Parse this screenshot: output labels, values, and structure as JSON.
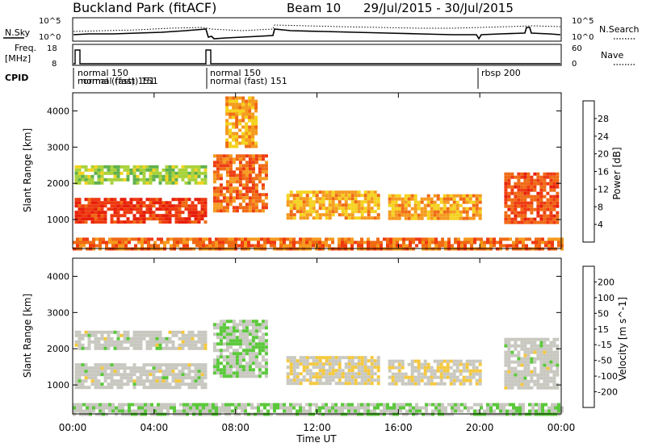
{
  "header": {
    "title": "Buckland Park (fitACF)",
    "beam": "Beam 10",
    "date_range": "29/Jul/2015 - 30/Jul/2015"
  },
  "top_panels": {
    "nsky_label": "N.Sky",
    "nsky_ticks": [
      "10^5",
      "10^0"
    ],
    "nsearch_label": "N.Search",
    "nsearch_ticks": [
      "10^5",
      "10^0"
    ],
    "freq_label_1": "Freq.",
    "freq_label_2": "[MHz]",
    "freq_ticks": [
      "18",
      "8"
    ],
    "nave_label": "Nave",
    "nave_ticks": [
      "60",
      "0"
    ],
    "cpid_label": "CPID",
    "cpid_annotations": [
      "normal 150",
      "normal (fast) 151",
      "normal (fast) 151",
      "normal 150",
      "normal (fast) 151",
      "rbsp 200"
    ]
  },
  "colors": {
    "power_scale": [
      "#1e1ee6",
      "#2f56b4",
      "#4e8a78",
      "#5fb04e",
      "#a8d23a",
      "#f5d21e",
      "#f59a1e",
      "#f06a14",
      "#ee3a10",
      "#e61e0a"
    ],
    "velocity_scale": [
      "#1e1ee6",
      "#2f56b4",
      "#3e8a5a",
      "#5ac83a",
      "#c8c8c0",
      "#c8c8c0",
      "#f5c83c",
      "#f5961e",
      "#f06414",
      "#e61e0a"
    ]
  },
  "chart_data": [
    {
      "type": "heatmap",
      "name": "power",
      "xlabel": "",
      "ylabel": "Slant Range [km]",
      "xlim": [
        "00:00",
        "00:00"
      ],
      "ylim": [
        200,
        4500
      ],
      "y_ticks": [
        "1000",
        "2000",
        "3000",
        "4000"
      ],
      "colorbar": {
        "label": "Power [dB]",
        "ticks": [
          "28",
          "24",
          "20",
          "16",
          "12",
          "8",
          "4"
        ],
        "range": [
          0,
          32
        ]
      },
      "regions": [
        {
          "x": [
            0.1,
            6.5
          ],
          "y": [
            900,
            1600
          ],
          "value": 28
        },
        {
          "x": [
            0.1,
            6.5
          ],
          "y": [
            2000,
            2500
          ],
          "value": 14
        },
        {
          "x": [
            6.9,
            9.5
          ],
          "y": [
            1200,
            2800
          ],
          "value": 24
        },
        {
          "x": [
            7.5,
            9.0
          ],
          "y": [
            3000,
            4400
          ],
          "value": 20
        },
        {
          "x": [
            10.5,
            15.0
          ],
          "y": [
            1000,
            1800
          ],
          "value": 20
        },
        {
          "x": [
            15.5,
            20.0
          ],
          "y": [
            1000,
            1700
          ],
          "value": 20
        },
        {
          "x": [
            21.2,
            23.8
          ],
          "y": [
            900,
            2300
          ],
          "value": 26
        },
        {
          "x": [
            0.0,
            24.0
          ],
          "y": [
            200,
            500
          ],
          "value": 24
        }
      ]
    },
    {
      "type": "heatmap",
      "name": "velocity",
      "xlabel": "Time UT",
      "ylabel": "Slant Range [km]",
      "xlim": [
        "00:00",
        "00:00"
      ],
      "ylim": [
        200,
        4500
      ],
      "x_ticks": [
        "00:00",
        "04:00",
        "08:00",
        "12:00",
        "16:00",
        "20:00",
        "00:00"
      ],
      "y_ticks": [
        "1000",
        "2000",
        "3000",
        "4000"
      ],
      "colorbar": {
        "label": "Velocity [m s^-1]",
        "ticks": [
          "200",
          "100",
          "50",
          "15",
          "-15",
          "-50",
          "-100",
          "-200"
        ],
        "range": [
          -250,
          250
        ]
      },
      "regions": [
        {
          "x": [
            0.1,
            6.5
          ],
          "y": [
            900,
            1600
          ],
          "value": 0
        },
        {
          "x": [
            0.1,
            6.5
          ],
          "y": [
            2000,
            2500
          ],
          "value": 0
        },
        {
          "x": [
            6.9,
            9.5
          ],
          "y": [
            1200,
            2800
          ],
          "value": -40
        },
        {
          "x": [
            10.5,
            15.0
          ],
          "y": [
            1000,
            1800
          ],
          "value": 40
        },
        {
          "x": [
            15.5,
            20.0
          ],
          "y": [
            1000,
            1700
          ],
          "value": 35
        },
        {
          "x": [
            21.2,
            23.8
          ],
          "y": [
            900,
            2300
          ],
          "value": 0
        },
        {
          "x": [
            0.0,
            24.0
          ],
          "y": [
            200,
            500
          ],
          "value": -40
        }
      ]
    }
  ]
}
